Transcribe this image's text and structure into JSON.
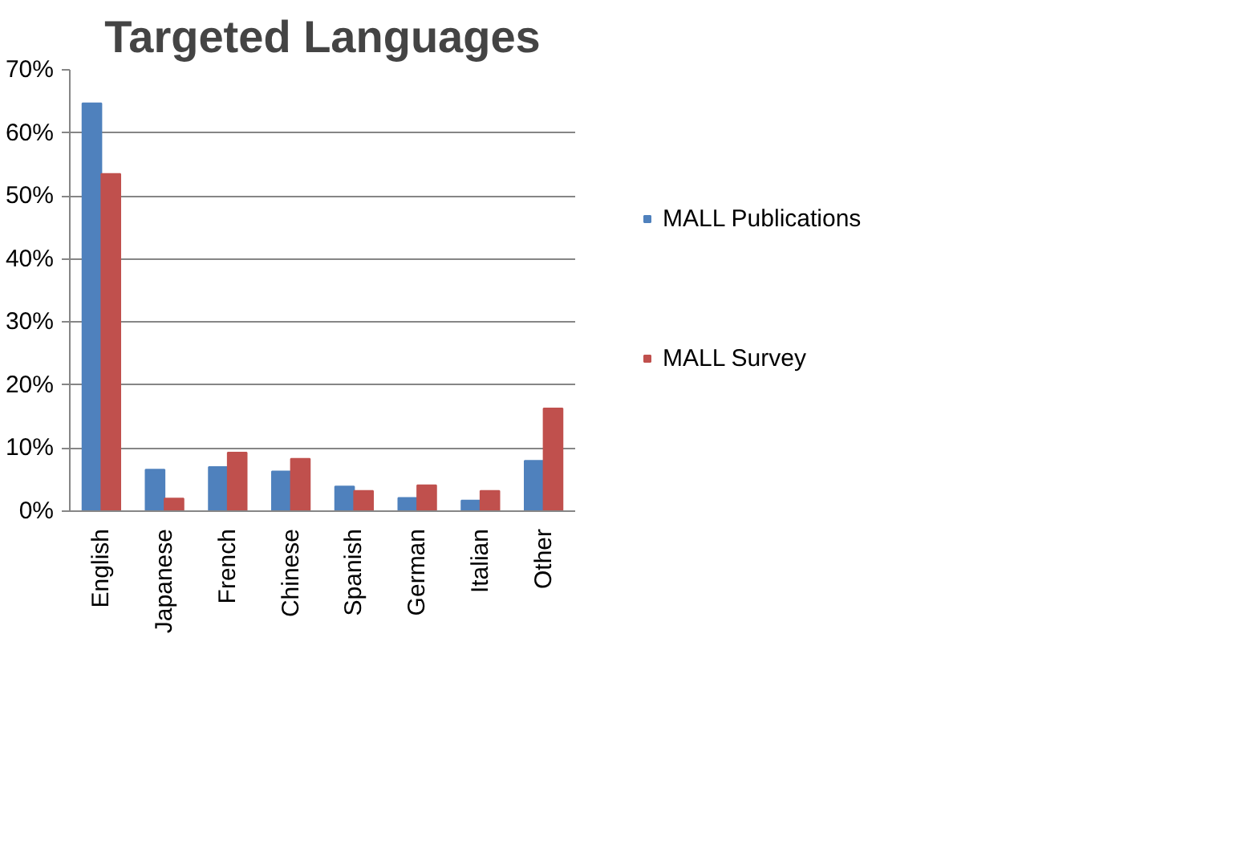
{
  "chart_data": {
    "type": "bar",
    "title": "Targeted Languages",
    "categories": [
      "English",
      "Japanese",
      "French",
      "Chinese",
      "Spanish",
      "German",
      "Italian",
      "Other"
    ],
    "series": [
      {
        "name": "MALL Publications",
        "color": "#4f81bd",
        "values": [
          64.7,
          6.6,
          7.0,
          6.3,
          3.9,
          2.1,
          1.7,
          8.0
        ]
      },
      {
        "name": "MALL Survey",
        "color": "#c0504d",
        "values": [
          53.5,
          2.0,
          9.3,
          8.3,
          3.2,
          4.1,
          3.2,
          16.3
        ]
      }
    ],
    "ylim": [
      0,
      70
    ],
    "yticks": [
      {
        "value": 0,
        "label": "0%"
      },
      {
        "value": 10,
        "label": "10%"
      },
      {
        "value": 20,
        "label": "20%"
      },
      {
        "value": 30,
        "label": "30%"
      },
      {
        "value": 40,
        "label": "40%"
      },
      {
        "value": 50,
        "label": "50%"
      },
      {
        "value": 60,
        "label": "60%"
      },
      {
        "value": 70,
        "label": "70%"
      }
    ],
    "grid": "y",
    "legend": "right"
  }
}
